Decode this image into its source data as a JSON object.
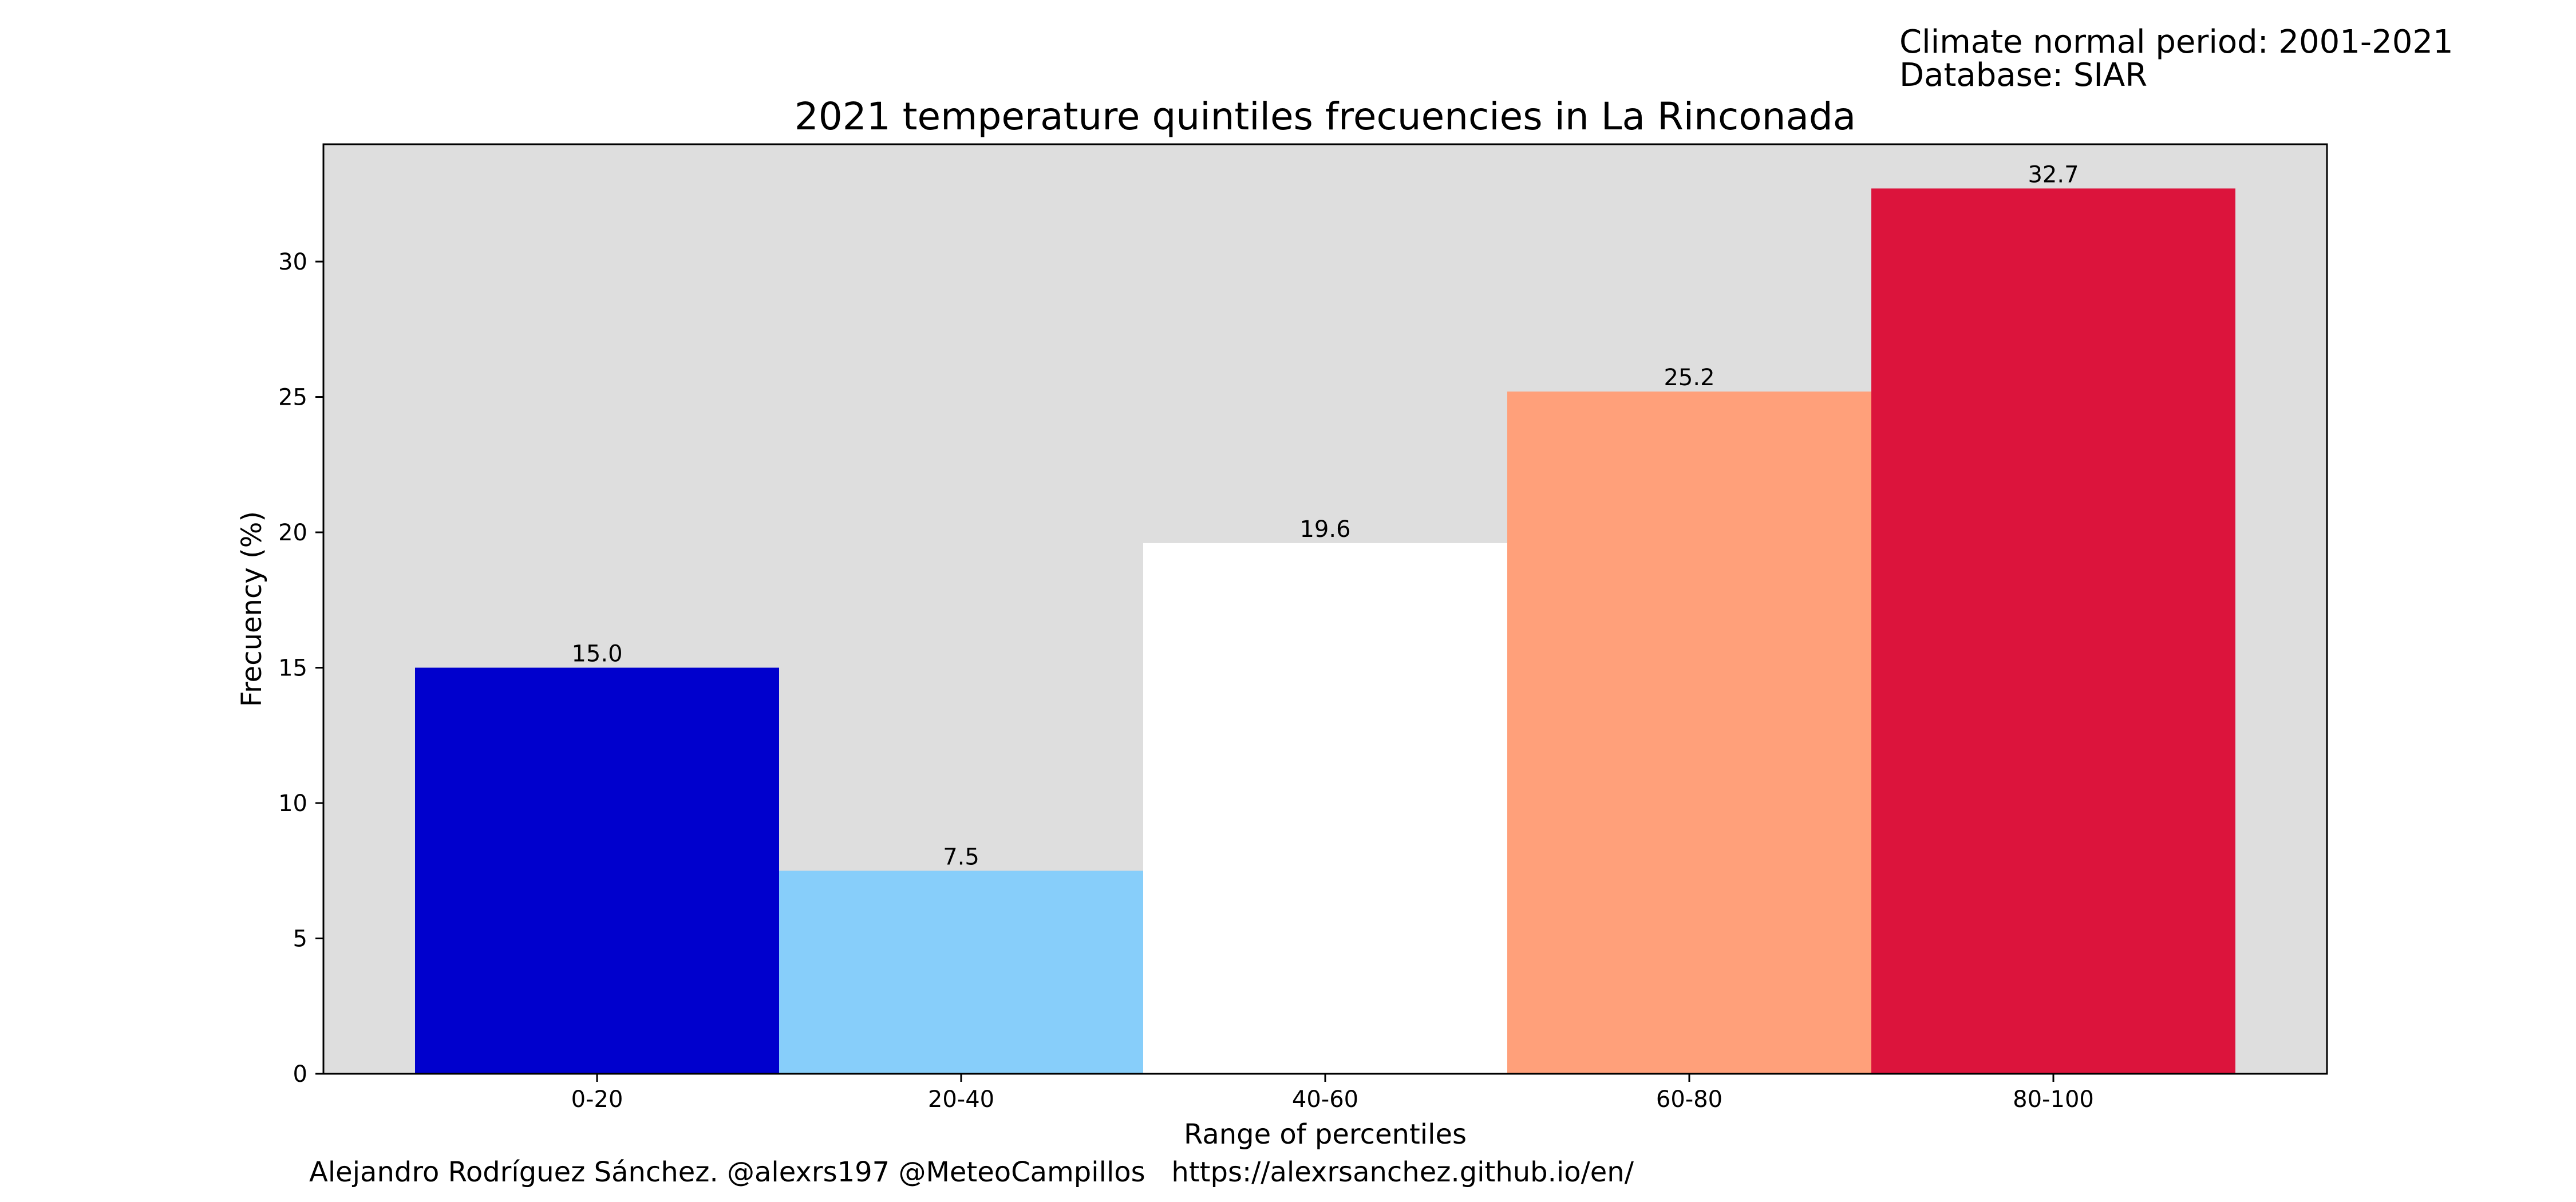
{
  "info": {
    "line1": "Climate normal period: 2001-2021",
    "line2": "Database: SIAR"
  },
  "credits": "Alejandro Rodríguez Sánchez. @alexrs197 @MeteoCampillos   https://alexrsanchez.github.io/en/",
  "chart_data": {
    "type": "bar",
    "title": "2021 temperature quintiles frecuencies in La Rinconada",
    "xlabel": "Range of percentiles",
    "ylabel": "Frecuency (%)",
    "categories": [
      "0-20",
      "20-40",
      "40-60",
      "60-80",
      "80-100"
    ],
    "values": [
      15.0,
      7.5,
      19.6,
      25.2,
      32.7
    ],
    "value_labels": [
      "15.0",
      "7.5",
      "19.6",
      "25.2",
      "32.7"
    ],
    "bar_colors": [
      "#0000cd",
      "#87cefa",
      "#ffffff",
      "#ffa07a",
      "#dc143c"
    ],
    "background_color": "#dedede",
    "ylim": [
      0,
      34.335
    ],
    "yticks": [
      0,
      5,
      10,
      15,
      20,
      25,
      30
    ],
    "grid": false,
    "legend": "none"
  }
}
